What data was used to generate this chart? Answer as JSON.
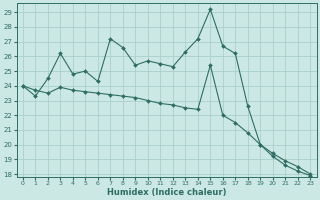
{
  "xlabel": "Humidex (Indice chaleur)",
  "xlim": [
    -0.5,
    23.5
  ],
  "ylim": [
    17.8,
    29.6
  ],
  "yticks": [
    18,
    19,
    20,
    21,
    22,
    23,
    24,
    25,
    26,
    27,
    28,
    29
  ],
  "xticks": [
    0,
    1,
    2,
    3,
    4,
    5,
    6,
    7,
    8,
    9,
    10,
    11,
    12,
    13,
    14,
    15,
    16,
    17,
    18,
    19,
    20,
    21,
    22,
    23
  ],
  "bg_color": "#cce8e4",
  "line_color": "#2d6e63",
  "grid_color": "#aacfcb",
  "line1_x": [
    0,
    1,
    2,
    3,
    4,
    5,
    6,
    7,
    8,
    9,
    10,
    11,
    12,
    13,
    14,
    15,
    16,
    17,
    18,
    19,
    20,
    21,
    22,
    23
  ],
  "line1_y": [
    24.0,
    23.3,
    24.5,
    26.2,
    24.8,
    25.0,
    24.3,
    27.2,
    26.6,
    25.4,
    25.7,
    25.5,
    25.3,
    26.3,
    27.2,
    29.2,
    26.7,
    26.2,
    22.6,
    20.0,
    19.2,
    18.6,
    18.2,
    17.9
  ],
  "line2_x": [
    0,
    1,
    2,
    3,
    4,
    5,
    6,
    7,
    8,
    9,
    10,
    11,
    12,
    13,
    14,
    15,
    16,
    17,
    18,
    19,
    20,
    21,
    22,
    23
  ],
  "line2_y": [
    24.0,
    23.7,
    23.5,
    23.9,
    23.7,
    23.6,
    23.5,
    23.4,
    23.3,
    23.2,
    23.0,
    22.8,
    22.7,
    22.5,
    22.4,
    25.4,
    22.0,
    21.5,
    20.8,
    20.0,
    19.4,
    18.9,
    18.5,
    18.0
  ]
}
